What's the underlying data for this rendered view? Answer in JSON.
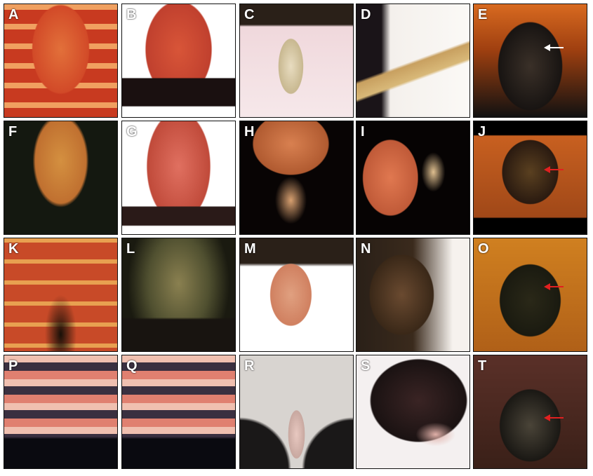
{
  "figure": {
    "panels": [
      {
        "label": "A",
        "bg": "radial-gradient(ellipse 45% 70% at 50% 40%, #e2703a 0%, #d24a28 55%, transparent 57%), repeating-linear-gradient(180deg,#f0a060 0 8px,#c83a20 8px 28px), #d8d8d8",
        "arrow": ""
      },
      {
        "label": "B",
        "bg": "linear-gradient(180deg,transparent 65%,#1a1010 66%,#1a1010 90%,#fff 91%), radial-gradient(ellipse 48% 70% at 50% 40%, #d85538 0%, #c0402e 60%, #fff 62%)",
        "arrow": ""
      },
      {
        "label": "C",
        "bg": "radial-gradient(ellipse 18% 40% at 45% 55%, #e8dcc0 0%, #c8b890 60%, transparent 62%), linear-gradient(180deg,#2a2018 0%,#2a2018 18%,#f0d8dc 20%,#f6e8ea 100%)",
        "arrow": ""
      },
      {
        "label": "D",
        "bg": "linear-gradient(160deg,transparent 50%,#c8a060 52%,#d8b878 62%,transparent 64%), linear-gradient(90deg,#1a1418 0%,#1a1418 22%,#f4f0ec 30%,#fbf9f6 100%)",
        "arrow": ""
      },
      {
        "label": "E",
        "bg": "radial-gradient(ellipse 40% 55% at 50% 55%, #3a3028 0%, #181412 70%, transparent 72%), linear-gradient(180deg,#d86a20 0%,#a04010 40%,#111 100%)",
        "arrow": "white"
      },
      {
        "label": "F",
        "bg": "radial-gradient(ellipse 45% 75% at 50% 35%, #d49040 0%, #c07030 50%, transparent 55%), #141810",
        "arrow": ""
      },
      {
        "label": "G",
        "bg": "linear-gradient(180deg,transparent 75%,#2a1a18 76%,#2a1a18 92%,#fff 93%), radial-gradient(ellipse 46% 80% at 50% 40%, #e07060 0%, #c04a3a 60%, #fff 62%)",
        "arrow": ""
      },
      {
        "label": "H",
        "bg": "radial-gradient(ellipse 55% 45% at 45% 20%, #d88050 0%, #b05a30 60%, transparent 62%), radial-gradient(ellipse 20% 30% at 45% 70%, #d8a070 0%, transparent 70%), #080404",
        "arrow": ""
      },
      {
        "label": "I",
        "bg": "radial-gradient(ellipse 40% 55% at 30% 50%, #e07850 0%, #c05a38 60%, transparent 62%), radial-gradient(ellipse 15% 25% at 68% 45%, #e0c090 0%, transparent 70%), #060303",
        "arrow": ""
      },
      {
        "label": "J",
        "bg": "radial-gradient(ellipse 35% 40% at 50% 45%, #5a4020 0%, #2a1a10 70%, transparent 72%), linear-gradient(180deg,#000 0%,#000 12%,#c86020 13%,#a04818 85%,#000 86%)",
        "arrow": "red"
      },
      {
        "label": "K",
        "bg": "radial-gradient(ellipse 20% 50% at 50% 85%, #181008 0%, transparent 70%), repeating-linear-gradient(180deg,#e8a050 0 6px,#c84a28 6px 30px), #c84a28",
        "arrow": ""
      },
      {
        "label": "L",
        "bg": "linear-gradient(180deg,transparent 70%,#181410 72%), radial-gradient(ellipse 45% 70% at 50% 40%, #8a8050 0%, #505030 60%, #1a1a10 100%)",
        "arrow": ""
      },
      {
        "label": "M",
        "bg": "radial-gradient(ellipse 30% 45% at 45% 50%, #e0a080 0%, #d08060 60%, transparent 62%), linear-gradient(180deg,#2a2018 0%,#2a2018 22%,#fff 25%)",
        "arrow": ""
      },
      {
        "label": "N",
        "bg": "radial-gradient(ellipse 40% 50% at 40% 50%, #6a4a30 0%, #3a2818 70%, transparent 72%), linear-gradient(90deg,#2a2018 0%,#3a2a1c 50%,#f6f2ee 85%)",
        "arrow": ""
      },
      {
        "label": "O",
        "bg": "radial-gradient(ellipse 38% 45% at 50% 55%, #2a2818 0%, #1a1a10 70%, transparent 72%), linear-gradient(180deg,#d08020 0%,#b06018 100%)",
        "arrow": "red"
      },
      {
        "label": "P",
        "bg": "linear-gradient(180deg,transparent 72%,#0a0a10 74%), repeating-linear-gradient(180deg,#f0c0b0 0 10px,#3a3040 10px 22px,#e08070 22px 34px), #f4e8ec",
        "arrow": ""
      },
      {
        "label": "Q",
        "bg": "linear-gradient(180deg,transparent 72%,#0a0a10 74%), repeating-linear-gradient(180deg,#f0c0b0 0 10px,#3a3040 10px 22px,#e08070 22px 34px), #f4e8ec",
        "arrow": ""
      },
      {
        "label": "R",
        "bg": "radial-gradient(ellipse 12% 35% at 50% 70%, #e8c8c0 0%, #c8a8a0 60%, transparent 62%), radial-gradient(circle at 0% 100%, #1a1818 30%, transparent 32%), radial-gradient(circle at 100% 100%, #1a1818 30%, transparent 32%), #d8d4d0",
        "arrow": ""
      },
      {
        "label": "S",
        "bg": "radial-gradient(ellipse 25% 15% at 70% 70%, #e0b0a8 0%, transparent 70%), radial-gradient(ellipse 70% 60% at 55% 40%, #3a2424 0%, #1a1212 60%, transparent 62%), #f4f0f0",
        "arrow": ""
      },
      {
        "label": "T",
        "bg": "radial-gradient(ellipse 38% 45% at 50% 62%, #4a4438 0%, #1a1814 70%, transparent 72%), linear-gradient(180deg,#5a3028 0%,#3a2018 100%)",
        "arrow": "red"
      }
    ]
  }
}
